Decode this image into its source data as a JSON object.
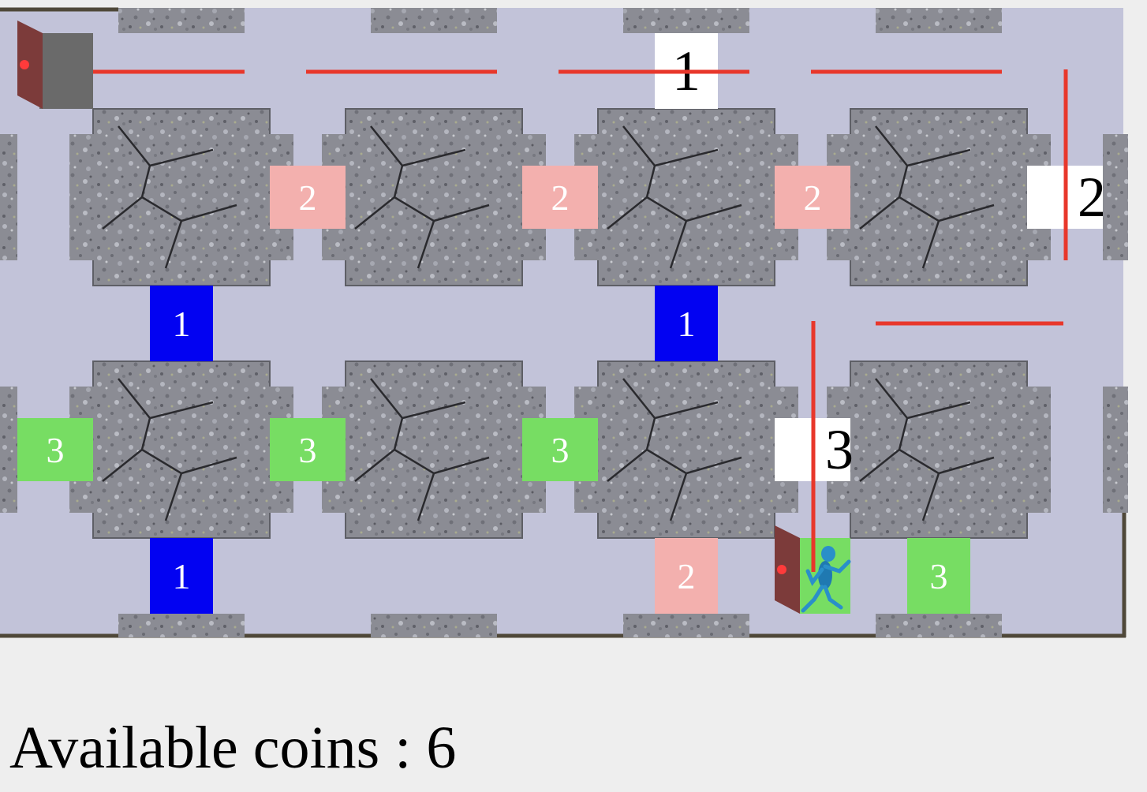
{
  "colors": {
    "floor": "#c2c3d9",
    "border": "#4f4839",
    "wall_red": "#e8372b",
    "tile_blue": "#0202f2",
    "tile_pink": "#f3b0ae",
    "tile_green": "#77dd63",
    "tile_white": "#ffffff",
    "door": "#7c3b3a",
    "door_knob": "#ff3b3b",
    "exit_gray": "#6a6a6a",
    "player": "#2a8fc9",
    "rock": "#8d8e96"
  },
  "icons": {
    "obstacle": "stone-block-icon",
    "door": "door-icon",
    "player": "running-stick-figure-icon",
    "exit": "exit-tile-icon"
  },
  "tiles": [
    {
      "name": "tile-white-1",
      "color": "white",
      "label": "1",
      "col": 10,
      "row": 0.5
    },
    {
      "name": "tile-pink-2",
      "color": "pink",
      "label": "2",
      "col": 4,
      "row": 3
    },
    {
      "name": "tile-pink-2",
      "color": "pink",
      "label": "2",
      "col": 8,
      "row": 3
    },
    {
      "name": "tile-pink-2",
      "color": "pink",
      "label": "2",
      "col": 12,
      "row": 3
    },
    {
      "name": "tile-white-2",
      "color": "white",
      "label": "2",
      "col": 16.25,
      "row": 3
    },
    {
      "name": "tile-blue-1",
      "color": "blue",
      "label": "1",
      "col": 2.375,
      "row": 5
    },
    {
      "name": "tile-blue-1",
      "color": "blue",
      "label": "1",
      "col": 10.375,
      "row": 5
    },
    {
      "name": "tile-green-3",
      "color": "green",
      "label": "3",
      "col": 0,
      "row": 7
    },
    {
      "name": "tile-green-3",
      "color": "green",
      "label": "3",
      "col": 4,
      "row": 7
    },
    {
      "name": "tile-green-3",
      "color": "green",
      "label": "3",
      "col": 8,
      "row": 7
    },
    {
      "name": "tile-white-3",
      "color": "white",
      "label": "3",
      "col": 12.25,
      "row": 7
    },
    {
      "name": "tile-blue-1",
      "color": "blue",
      "label": "1",
      "col": 2.375,
      "row": 9
    },
    {
      "name": "tile-pink-2",
      "color": "pink",
      "label": "2",
      "col": 10.375,
      "row": 9
    },
    {
      "name": "tile-green-3",
      "color": "green",
      "label": "3",
      "col": 14.375,
      "row": 9
    }
  ],
  "status": {
    "coins_text": "Available coins : 6",
    "coins": 6
  }
}
